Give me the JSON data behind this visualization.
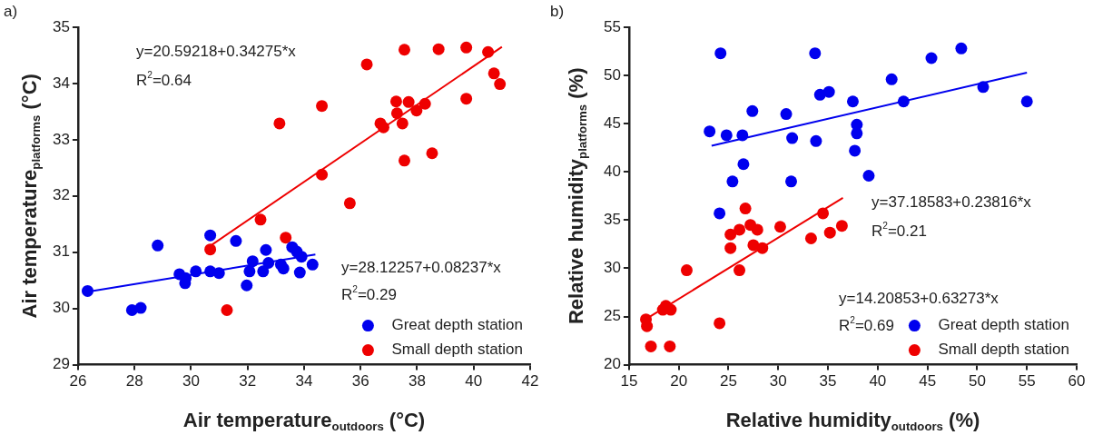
{
  "chart_data": [
    {
      "type": "scatter",
      "title": "a)",
      "xlabel": "Air temperature$_{outdoors}$ (°C)",
      "ylabel": "Air temperature$_{platforms}$ (°C)",
      "xlim": [
        26,
        42
      ],
      "xticks": [
        26,
        28,
        30,
        32,
        34,
        36,
        38,
        40,
        42
      ],
      "ylim": [
        29,
        35
      ],
      "yticks": [
        29,
        30,
        31,
        32,
        33,
        34,
        35
      ],
      "grid": false,
      "legend": "bottom right",
      "annotations": [
        "y=20.59218+0.34275*x",
        "R$^{2}$=0.64",
        "y=28.12257+0.08237*x",
        "R$^{2}$=0.29"
      ],
      "series": [
        {
          "name": "Great depth station",
          "color": "#0000ee",
          "type": "scatter",
          "marker": "circle",
          "x": [
            26.34,
            27.91,
            28.22,
            28.82,
            29.59,
            29.79,
            29.81,
            30.17,
            30.68,
            30.68,
            30.99,
            31.59,
            31.97,
            32.07,
            32.18,
            32.55,
            32.65,
            32.74,
            33.18,
            33.27,
            33.58,
            33.74,
            33.91,
            33.85,
            34.3
          ],
          "values": [
            30.31,
            29.97,
            30.01,
            31.12,
            30.61,
            30.45,
            30.54,
            30.66,
            31.3,
            30.66,
            30.63,
            31.2,
            30.41,
            30.66,
            30.84,
            30.66,
            31.04,
            30.81,
            30.78,
            30.71,
            31.09,
            31.01,
            30.92,
            30.64,
            30.78
          ]
        },
        {
          "name": "Small depth station",
          "color": "#ee0000",
          "type": "scatter",
          "marker": "circle",
          "x": [
            33.13,
            34.63,
            36.22,
            37.55,
            38.76,
            39.74,
            40.51,
            40.72,
            40.93,
            39.74,
            37.26,
            37.7,
            38.28,
            37.98,
            37.29,
            37.48,
            36.7,
            36.81,
            37.55,
            38.53,
            34.63,
            35.62,
            33.35,
            30.68,
            32.46,
            31.27
          ],
          "values": [
            33.29,
            33.6,
            34.34,
            34.6,
            34.61,
            34.64,
            34.56,
            34.18,
            33.99,
            33.73,
            33.68,
            33.67,
            33.64,
            33.52,
            33.47,
            33.29,
            33.29,
            33.22,
            32.63,
            32.76,
            32.38,
            31.87,
            31.26,
            31.05,
            31.58,
            29.97
          ]
        },
        {
          "color": "#0000ee",
          "type": "line",
          "marker": "none",
          "x": [
            26.4,
            34.4
          ],
          "values": [
            30.3,
            30.96
          ]
        },
        {
          "color": "#ee0000",
          "type": "line",
          "marker": "none",
          "x": [
            30.7,
            41
          ],
          "values": [
            31.12,
            34.65
          ]
        }
      ]
    },
    {
      "type": "scatter",
      "title": "b)",
      "xlabel": "Relative humidity$_{outdoors}$ (%)",
      "ylabel": "Relative humidity$_{platforms}$ (%)",
      "xlim": [
        15,
        60
      ],
      "xticks": [
        15,
        20,
        25,
        30,
        35,
        40,
        45,
        50,
        55,
        60
      ],
      "ylim": [
        20,
        55
      ],
      "yticks": [
        20,
        25,
        30,
        35,
        40,
        45,
        50,
        55
      ],
      "grid": false,
      "legend": "bottom right",
      "annotations": [
        "y=37.18583+0.23816*x",
        "R$^{2}$=0.21",
        "y=14.20853+0.63273*x",
        "R$^{2}$=0.69"
      ],
      "series": [
        {
          "name": "Great depth station",
          "color": "#0000ee",
          "type": "scatter",
          "marker": "circle",
          "x": [
            24.2,
            33.7,
            34.2,
            35.1,
            27.4,
            30.8,
            23.1,
            24.8,
            26.4,
            31.4,
            33.8,
            26.5,
            25.4,
            31.3,
            24.1,
            45.4,
            48.4,
            41.4,
            37.5,
            42.6,
            50.6,
            55.0,
            37.9,
            37.9,
            37.7,
            39.1
          ],
          "values": [
            52.3,
            52.3,
            48.0,
            48.3,
            46.3,
            46.0,
            44.2,
            43.8,
            43.8,
            43.5,
            43.2,
            40.8,
            39.0,
            39.0,
            35.7,
            51.8,
            52.8,
            49.6,
            47.3,
            47.3,
            48.8,
            47.3,
            44.9,
            44.0,
            42.2,
            39.6
          ]
        },
        {
          "name": "Small depth station",
          "color": "#ee0000",
          "type": "scatter",
          "marker": "circle",
          "x": [
            16.7,
            16.8,
            17.2,
            19.1,
            18.7,
            19.2,
            18.4,
            20.8,
            24.1,
            25.2,
            25.2,
            26.1,
            26.1,
            26.7,
            27.2,
            27.5,
            27.9,
            28.4,
            30.2,
            33.3,
            34.5,
            35.2,
            36.4
          ],
          "values": [
            24.7,
            24.0,
            21.9,
            21.9,
            26.1,
            25.7,
            25.7,
            29.8,
            24.3,
            32.1,
            33.5,
            29.8,
            34.0,
            36.2,
            34.5,
            32.4,
            34.0,
            32.1,
            34.3,
            33.1,
            35.7,
            33.7,
            34.4
          ]
        },
        {
          "color": "#0000ee",
          "type": "line",
          "marker": "none",
          "x": [
            23.3,
            55
          ],
          "values": [
            42.7,
            50.3
          ]
        },
        {
          "color": "#ee0000",
          "type": "line",
          "marker": "none",
          "x": [
            16.8,
            36.5
          ],
          "values": [
            24.8,
            37.3
          ]
        }
      ]
    }
  ]
}
